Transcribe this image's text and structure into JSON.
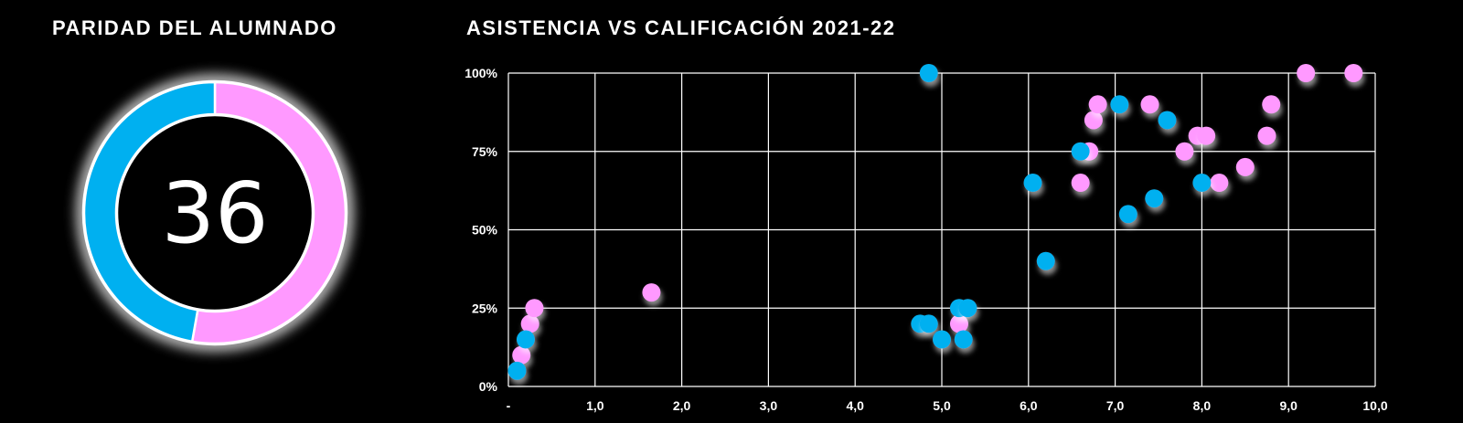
{
  "colors": {
    "background": "#000000",
    "blue": "#00b0f0",
    "pink": "#ff99ff",
    "grid": "#ffffff"
  },
  "parity_panel": {
    "title": "PARIDAD DEL ALUMNADO",
    "center_value": "36"
  },
  "scatter_panel": {
    "title": "ASISTENCIA VS CALIFICACIÓN 2021-22"
  },
  "chart_data": [
    {
      "type": "pie",
      "variant": "donut",
      "title": "PARIDAD DEL ALUMNADO",
      "center_label": "36",
      "slices": [
        {
          "color": "#ff99ff",
          "value": 19
        },
        {
          "color": "#00b0f0",
          "value": 17
        }
      ]
    },
    {
      "type": "scatter",
      "title": "ASISTENCIA VS CALIFICACIÓN 2021-22",
      "xlim": [
        0,
        10
      ],
      "ylim": [
        0,
        100
      ],
      "x_ticks": [
        0,
        1,
        2,
        3,
        4,
        5,
        6,
        7,
        8,
        9,
        10
      ],
      "x_tick_labels": [
        "-",
        "1,0",
        "2,0",
        "3,0",
        "4,0",
        "5,0",
        "6,0",
        "7,0",
        "8,0",
        "9,0",
        "10,0"
      ],
      "y_ticks": [
        0,
        25,
        50,
        75,
        100
      ],
      "y_tick_labels": [
        "0%",
        "25%",
        "50%",
        "75%",
        "100%"
      ],
      "grid": true,
      "series": [
        {
          "color": "#ff99ff",
          "points": [
            [
              0.15,
              10
            ],
            [
              0.25,
              20
            ],
            [
              0.3,
              25
            ],
            [
              1.65,
              30
            ],
            [
              5.2,
              20
            ],
            [
              6.6,
              65
            ],
            [
              6.7,
              75
            ],
            [
              6.75,
              85
            ],
            [
              6.8,
              90
            ],
            [
              7.4,
              90
            ],
            [
              7.8,
              75
            ],
            [
              7.95,
              80
            ],
            [
              8.05,
              80
            ],
            [
              8.2,
              65
            ],
            [
              8.5,
              70
            ],
            [
              8.75,
              80
            ],
            [
              8.8,
              90
            ],
            [
              9.2,
              100
            ],
            [
              9.75,
              100
            ]
          ]
        },
        {
          "color": "#00b0f0",
          "points": [
            [
              0.1,
              5
            ],
            [
              0.2,
              15
            ],
            [
              4.75,
              20
            ],
            [
              4.85,
              20
            ],
            [
              4.85,
              100
            ],
            [
              5.0,
              15
            ],
            [
              5.2,
              25
            ],
            [
              5.3,
              25
            ],
            [
              5.25,
              15
            ],
            [
              6.05,
              65
            ],
            [
              6.2,
              40
            ],
            [
              6.6,
              75
            ],
            [
              7.05,
              90
            ],
            [
              7.15,
              55
            ],
            [
              7.45,
              60
            ],
            [
              7.6,
              85
            ],
            [
              8.0,
              65
            ]
          ]
        }
      ]
    }
  ]
}
